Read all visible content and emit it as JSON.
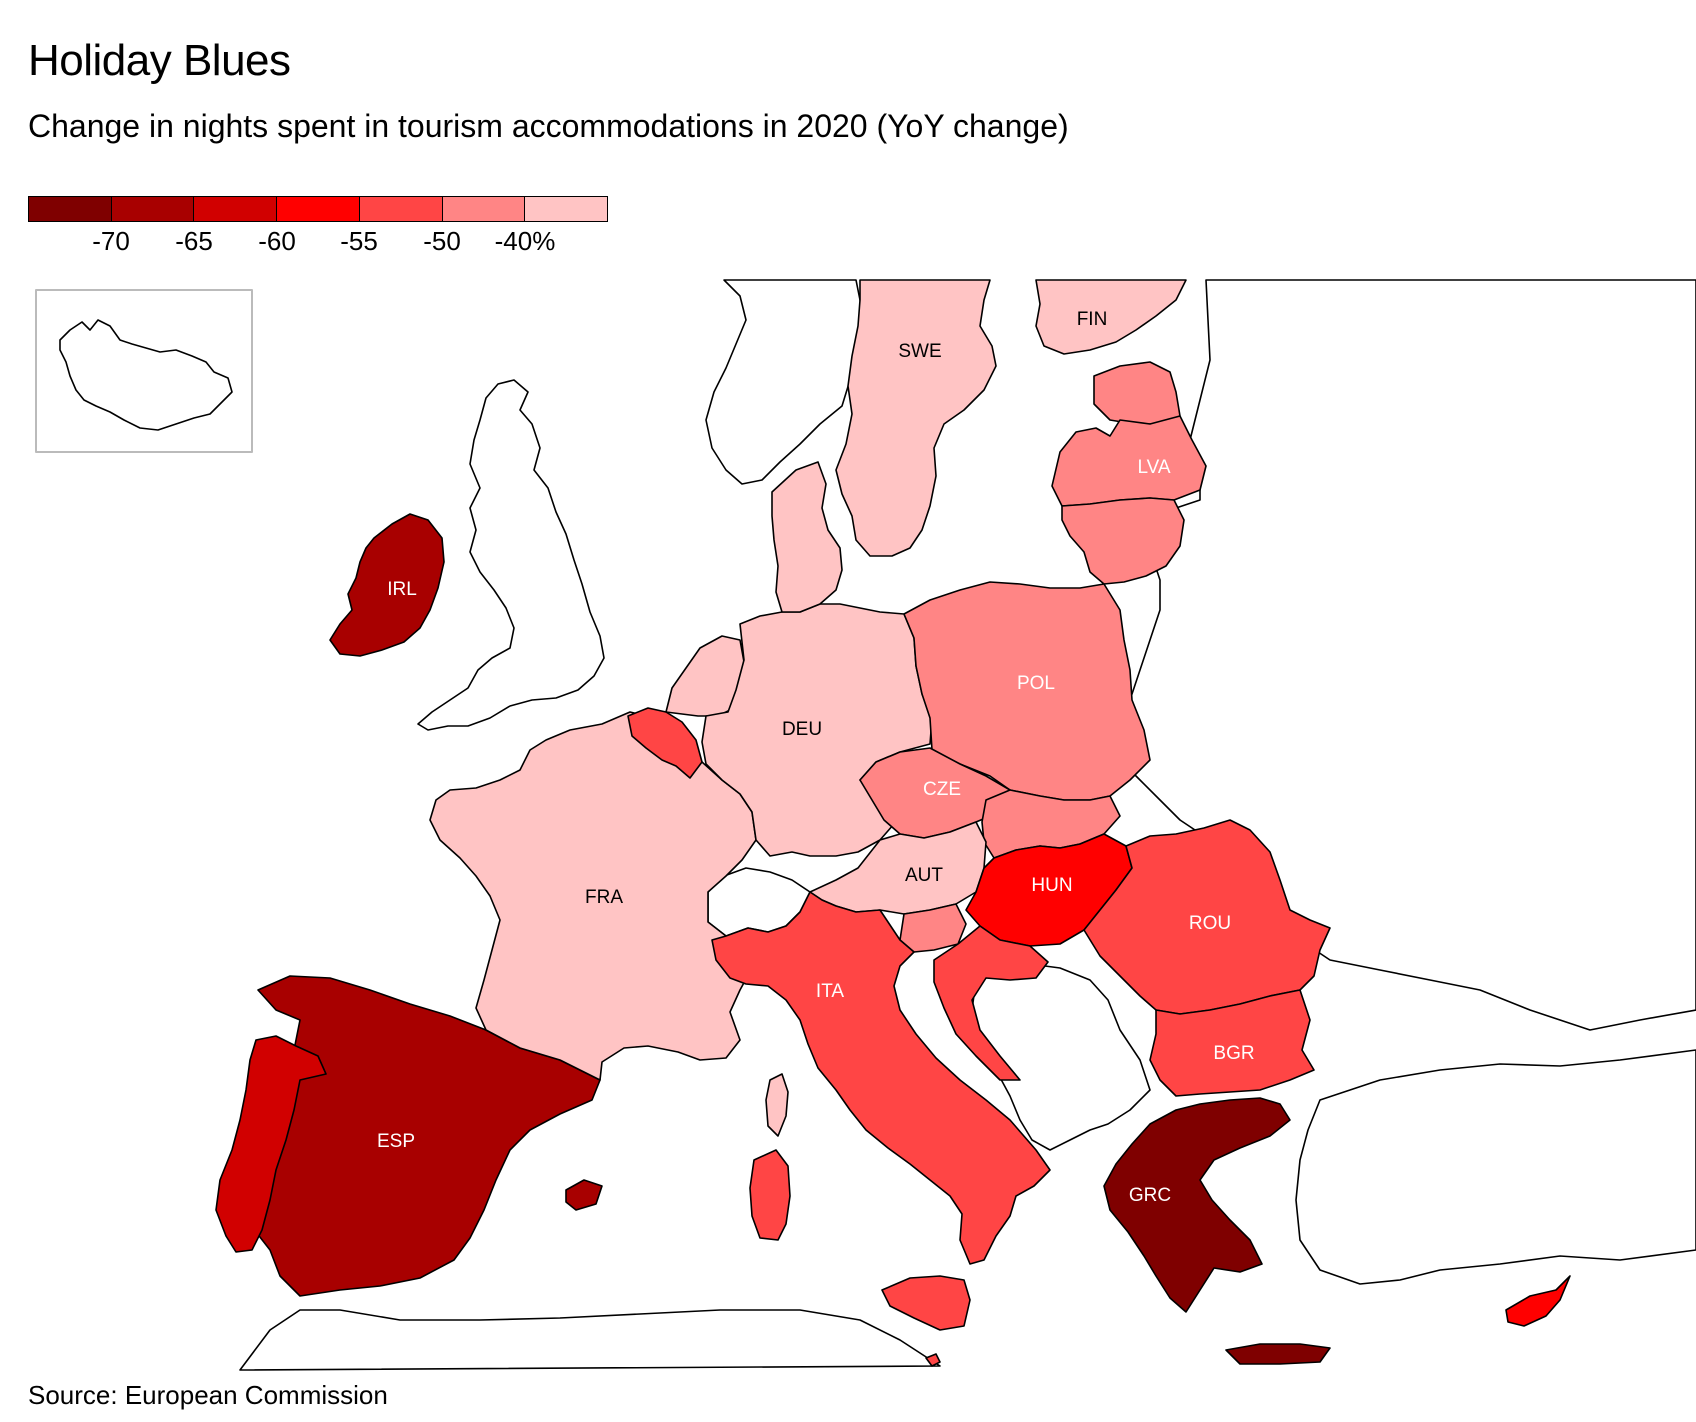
{
  "header": {
    "title": "Holiday Blues",
    "subtitle": "Change in nights spent in tourism accommodations in 2020 (YoY change)"
  },
  "legend": {
    "colors": [
      "#7f0000",
      "#a80000",
      "#d10000",
      "#ff0000",
      "#ff4545",
      "#ff8585",
      "#ffc4c4"
    ],
    "ticks": [
      "-70",
      "-65",
      "-60",
      "-55",
      "-50",
      "-40%"
    ]
  },
  "colors": {
    "no_data": "#ffffff",
    "border": "#000000",
    "label_dark": "#000000",
    "label_light": "#ffffff"
  },
  "countries": [
    {
      "code": "IRL",
      "label": "IRL",
      "color": "#a80000"
    },
    {
      "code": "ESP",
      "label": "ESP",
      "color": "#a80000"
    },
    {
      "code": "PRT",
      "label": "",
      "color": "#d10000"
    },
    {
      "code": "FRA",
      "label": "FRA",
      "color": "#ffc4c4"
    },
    {
      "code": "BEL",
      "label": "",
      "color": "#ff4545"
    },
    {
      "code": "NLD",
      "label": "",
      "color": "#ffc4c4"
    },
    {
      "code": "DEU",
      "label": "DEU",
      "color": "#ffc4c4"
    },
    {
      "code": "DNK",
      "label": "",
      "color": "#ffc4c4"
    },
    {
      "code": "SWE",
      "label": "SWE",
      "color": "#ffc4c4"
    },
    {
      "code": "FIN",
      "label": "FIN",
      "color": "#ffc4c4"
    },
    {
      "code": "EST",
      "label": "",
      "color": "#ff8585"
    },
    {
      "code": "LVA",
      "label": "LVA",
      "color": "#ff8585"
    },
    {
      "code": "LTU",
      "label": "",
      "color": "#ff8585"
    },
    {
      "code": "POL",
      "label": "POL",
      "color": "#ff8585"
    },
    {
      "code": "CZE",
      "label": "CZE",
      "color": "#ff8585"
    },
    {
      "code": "SVK",
      "label": "",
      "color": "#ff8585"
    },
    {
      "code": "AUT",
      "label": "AUT",
      "color": "#ffc4c4"
    },
    {
      "code": "SVN",
      "label": "",
      "color": "#ff8585"
    },
    {
      "code": "HUN",
      "label": "HUN",
      "color": "#ff0000"
    },
    {
      "code": "HRV",
      "label": "",
      "color": "#ff4545"
    },
    {
      "code": "ITA",
      "label": "ITA",
      "color": "#ff4545"
    },
    {
      "code": "ROU",
      "label": "ROU",
      "color": "#ff4545"
    },
    {
      "code": "BGR",
      "label": "BGR",
      "color": "#ff4545"
    },
    {
      "code": "GRC",
      "label": "GRC",
      "color": "#7f0000"
    },
    {
      "code": "CYP",
      "label": "",
      "color": "#ff0000"
    },
    {
      "code": "MLT",
      "label": "",
      "color": "#ff4545"
    }
  ],
  "source": "Source: European Commission"
}
